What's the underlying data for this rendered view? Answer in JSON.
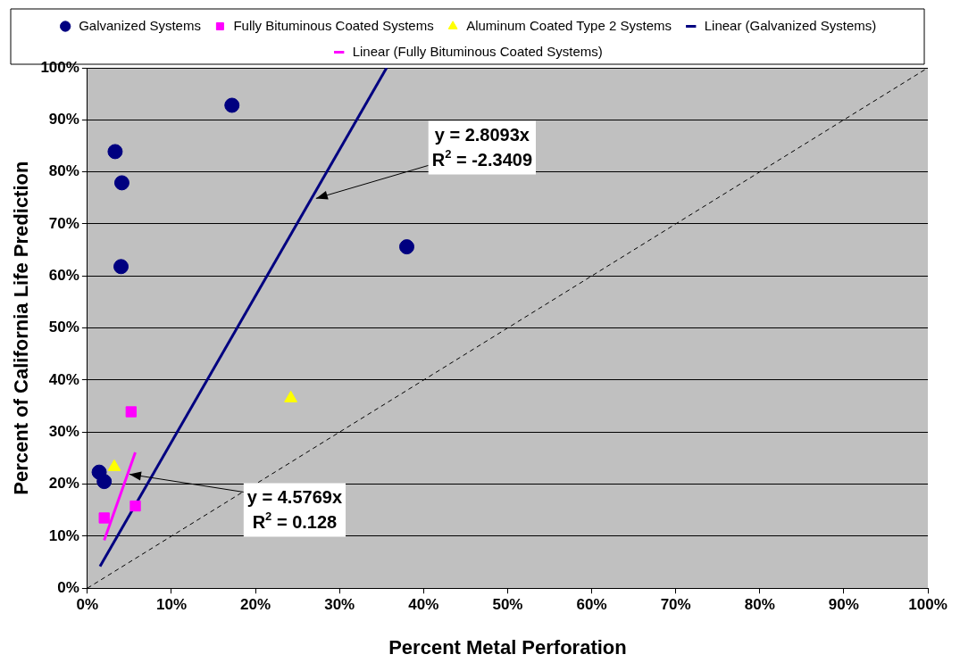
{
  "chart_data": {
    "type": "scatter",
    "xlabel": "Percent Metal Perforation",
    "ylabel": "Percent of California Life Prediction",
    "xlim": [
      0,
      100
    ],
    "ylim": [
      0,
      100
    ],
    "xticks": [
      {
        "value": 0,
        "label": "0%"
      },
      {
        "value": 10,
        "label": "10%"
      },
      {
        "value": 20,
        "label": "20%"
      },
      {
        "value": 30,
        "label": "30%"
      },
      {
        "value": 40,
        "label": "40%"
      },
      {
        "value": 50,
        "label": "50%"
      },
      {
        "value": 60,
        "label": "60%"
      },
      {
        "value": 70,
        "label": "70%"
      },
      {
        "value": 80,
        "label": "80%"
      },
      {
        "value": 90,
        "label": "90%"
      },
      {
        "value": 100,
        "label": "100%"
      }
    ],
    "yticks": [
      {
        "value": 0,
        "label": "0%"
      },
      {
        "value": 10,
        "label": "10%"
      },
      {
        "value": 20,
        "label": "20%"
      },
      {
        "value": 30,
        "label": "30%"
      },
      {
        "value": 40,
        "label": "40%"
      },
      {
        "value": 50,
        "label": "50%"
      },
      {
        "value": 60,
        "label": "60%"
      },
      {
        "value": 70,
        "label": "70%"
      },
      {
        "value": 80,
        "label": "80%"
      },
      {
        "value": 90,
        "label": "90%"
      },
      {
        "value": 100,
        "label": "100%"
      }
    ],
    "grid": "y",
    "legend": "top",
    "series": [
      {
        "name": "Galvanized Systems",
        "type": "scatter",
        "marker": "circle",
        "color": "#000080",
        "x": [
          17.2,
          3.3,
          4.1,
          4.0,
          38.0,
          1.4,
          2.0
        ],
        "values": [
          92.8,
          83.9,
          77.9,
          61.8,
          65.6,
          22.3,
          20.5
        ]
      },
      {
        "name": "Fully Bituminous Coated Systems",
        "type": "scatter",
        "marker": "square",
        "color": "#ff00ff",
        "x": [
          5.2,
          2.0,
          5.7
        ],
        "values": [
          33.9,
          13.5,
          15.8
        ]
      },
      {
        "name": "Aluminum Coated Type 2 Systems",
        "type": "scatter",
        "marker": "triangle",
        "color": "#ffff00",
        "x": [
          3.2,
          24.2
        ],
        "values": [
          23.3,
          36.5
        ]
      },
      {
        "name": "Linear (Galvanized Systems)",
        "type": "line",
        "marker": "none",
        "line_style": "solid",
        "color": "#000080",
        "x": [
          1.5,
          35.6
        ],
        "values": [
          4.2,
          100
        ]
      },
      {
        "name": "Linear (Fully Bituminous Coated Systems)",
        "type": "line",
        "marker": "none",
        "line_style": "solid",
        "color": "#ff00ff",
        "x": [
          2.0,
          5.7
        ],
        "values": [
          9.2,
          26.1
        ]
      },
      {
        "type": "line",
        "marker": "none",
        "line_style": "dashed",
        "color": "#000000",
        "x": [
          0,
          100
        ],
        "values": [
          0,
          100
        ]
      }
    ],
    "annotations": [
      {
        "text": "y = 2.8093x\nR$^{2}$ = -2.3409",
        "x": 27.2,
        "y": 74.9
      },
      {
        "text": "y = 4.5769x\nR$^{2}$ = 0.128",
        "x": 5.0,
        "y": 21.9
      }
    ]
  }
}
